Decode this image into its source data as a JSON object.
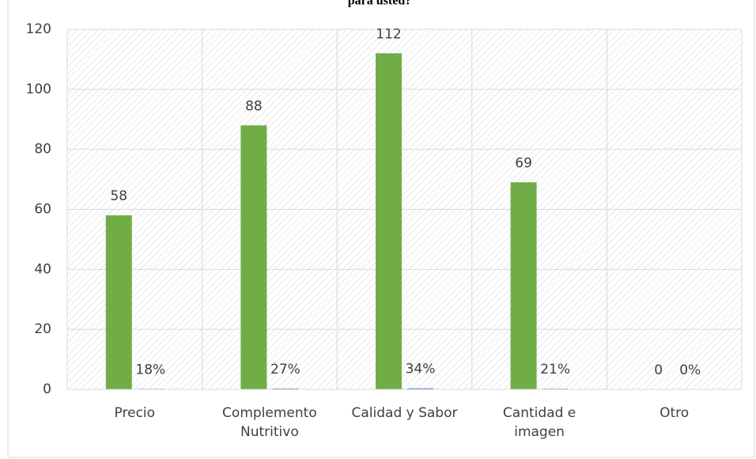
{
  "chart_data": {
    "type": "bar",
    "title": "para usted?",
    "categories": [
      "Precio",
      "Complemento\nNutritivo",
      "Calidad y Sabor",
      "Cantidad e\nimagen",
      "Otro"
    ],
    "series": [
      {
        "color": "#70ad47",
        "values": [
          58,
          88,
          112,
          69,
          0
        ]
      },
      {
        "color": "#4472c4",
        "values": [
          0.18,
          0.27,
          0.34,
          0.21,
          0
        ],
        "value_labels": [
          "18%",
          "27%",
          "34%",
          "21%",
          "0%"
        ]
      }
    ],
    "ylim": [
      0,
      120
    ],
    "yticks": [
      0,
      20,
      40,
      60,
      80,
      100,
      120
    ],
    "grid": true
  }
}
